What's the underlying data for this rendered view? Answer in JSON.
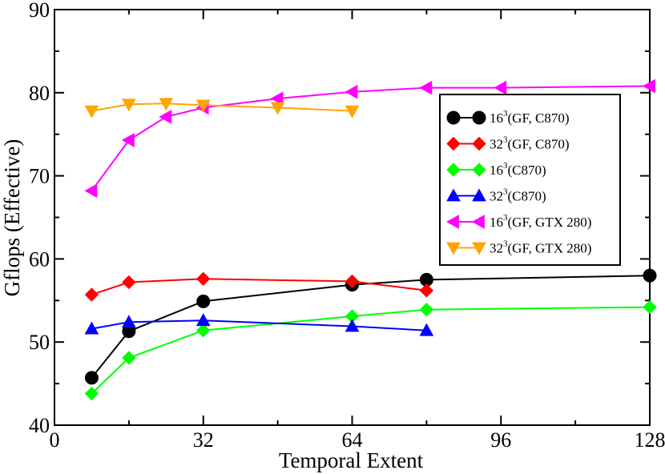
{
  "chart_data": {
    "type": "line",
    "title": "",
    "xlabel": "Temporal Extent",
    "ylabel": "Gflops (Effective)",
    "xlim": [
      0,
      128
    ],
    "ylim": [
      40,
      90
    ],
    "xticks": [
      0,
      32,
      64,
      96,
      128
    ],
    "yticks": [
      40,
      50,
      60,
      70,
      80,
      90
    ],
    "xtick_labels": [
      "0",
      "32",
      "64",
      "96",
      "128"
    ],
    "ytick_labels": [
      "40",
      "50",
      "60",
      "70",
      "80",
      "90"
    ],
    "grid": false,
    "legend_position": "right-middle",
    "series": [
      {
        "name": "16^3(GF, C870)",
        "label_base": "16",
        "label_sup": "3",
        "label_rest": "(GF, C870)",
        "color": "#000000",
        "marker": "circle",
        "x": [
          8,
          16,
          32,
          64,
          80,
          128
        ],
        "y": [
          45.7,
          51.3,
          54.9,
          56.9,
          57.5,
          58.0
        ]
      },
      {
        "name": "32^3(GF, C870)",
        "label_base": "32",
        "label_sup": "3",
        "label_rest": "(GF, C870)",
        "color": "#ff0000",
        "marker": "diamond",
        "x": [
          8,
          16,
          32,
          64,
          80
        ],
        "y": [
          55.7,
          57.2,
          57.6,
          57.3,
          56.2
        ]
      },
      {
        "name": "16^3(C870)",
        "label_base": "16",
        "label_sup": "3",
        "label_rest": "(C870)",
        "color": "#00ff00",
        "marker": "diamond",
        "x": [
          8,
          16,
          32,
          64,
          80,
          128
        ],
        "y": [
          43.8,
          48.1,
          51.4,
          53.1,
          53.9,
          54.2
        ]
      },
      {
        "name": "32^3(C870)",
        "label_base": "32",
        "label_sup": "3",
        "label_rest": "(C870)",
        "color": "#0000ff",
        "marker": "triangle-up",
        "x": [
          8,
          16,
          32,
          64,
          80
        ],
        "y": [
          51.6,
          52.4,
          52.6,
          51.9,
          51.4
        ]
      },
      {
        "name": "16^3(GF, GTX 280)",
        "label_base": "16",
        "label_sup": "3",
        "label_rest": "(GF, GTX 280)",
        "color": "#ff00ff",
        "marker": "triangle-left",
        "x": [
          8,
          16,
          24,
          32,
          48,
          64,
          80,
          96,
          128
        ],
        "y": [
          68.2,
          74.3,
          77.1,
          78.2,
          79.3,
          80.1,
          80.6,
          80.6,
          80.8
        ]
      },
      {
        "name": "32^3(GF, GTX 280)",
        "label_base": "32",
        "label_sup": "3",
        "label_rest": "(GF, GTX 280)",
        "color": "#ffa500",
        "marker": "triangle-down",
        "x": [
          8,
          16,
          24,
          32,
          48,
          64
        ],
        "y": [
          77.8,
          78.6,
          78.7,
          78.5,
          78.2,
          77.8
        ]
      }
    ]
  }
}
